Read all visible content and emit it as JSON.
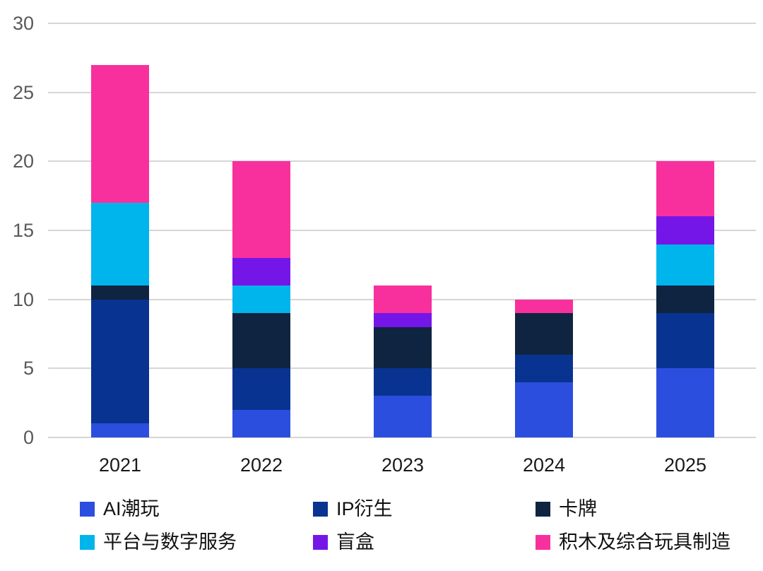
{
  "chart_data": {
    "type": "bar",
    "stacked": true,
    "title": "",
    "xlabel": "",
    "ylabel": "",
    "categories": [
      "2021",
      "2022",
      "2023",
      "2024",
      "2025"
    ],
    "series": [
      {
        "name": "AI潮玩",
        "color": "#2c4ede",
        "values": [
          1,
          2,
          3,
          4,
          5
        ]
      },
      {
        "name": "IP衍生",
        "color": "#083390",
        "values": [
          9,
          3,
          2,
          2,
          4
        ]
      },
      {
        "name": "卡牌",
        "color": "#0f2440",
        "values": [
          1,
          4,
          3,
          3,
          2
        ]
      },
      {
        "name": "平台与数字服务",
        "color": "#00b4ec",
        "values": [
          6,
          2,
          0,
          0,
          3
        ]
      },
      {
        "name": "盲盒",
        "color": "#7516e8",
        "values": [
          0,
          2,
          1,
          0,
          2
        ]
      },
      {
        "name": "积木及综合玩具制造",
        "color": "#f8309d",
        "values": [
          10,
          7,
          2,
          1,
          4
        ]
      }
    ],
    "stack_totals": [
      27,
      20,
      11,
      10,
      20
    ],
    "ylim": [
      0,
      30
    ],
    "yticks": [
      0,
      5,
      10,
      15,
      20,
      25,
      30
    ],
    "grid": true,
    "legend_position": "bottom",
    "legend_rows": [
      [
        0,
        1,
        2
      ],
      [
        3,
        4,
        5
      ]
    ]
  },
  "colors": {
    "background": "#ffffff",
    "gridline": "#d6d6d6",
    "y_tick_text": "#595959",
    "x_tick_text": "#1a1a1a",
    "legend_text": "#111111"
  }
}
